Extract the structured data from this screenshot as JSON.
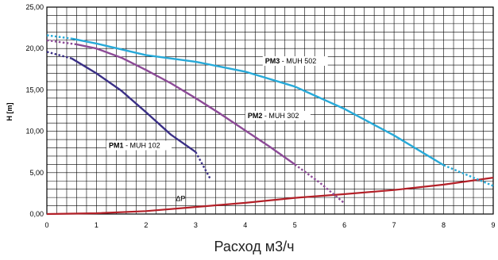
{
  "chart_data": {
    "type": "line",
    "title": "",
    "xlabel": "Расход м3/ч",
    "ylabel": "H [m]",
    "xlim": [
      0,
      9
    ],
    "ylim": [
      0,
      25
    ],
    "grid": true,
    "x_ticks": [
      "0",
      "1",
      "2",
      "3",
      "4",
      "5",
      "6",
      "7",
      "8",
      "9"
    ],
    "y_ticks": [
      "0,00",
      "5,00",
      "10,00",
      "15,00",
      "20,00",
      "25,00"
    ],
    "series": [
      {
        "label_bold": "PM1",
        "label_rest": " - MUH 102",
        "color": "#3a2f86",
        "solid": [
          [
            0.5,
            18.8
          ],
          [
            1.0,
            17.0
          ],
          [
            1.5,
            14.9
          ],
          [
            2.0,
            12.3
          ],
          [
            2.5,
            9.6
          ],
          [
            3.0,
            7.5
          ]
        ],
        "dotted": [
          [
            0.0,
            19.6
          ],
          [
            0.5,
            18.8
          ]
        ],
        "dotted_end": [
          [
            3.0,
            7.5
          ],
          [
            3.3,
            4.2
          ]
        ]
      },
      {
        "label_bold": "PM2",
        "label_rest": " - MUH 302",
        "color": "#8c4a97",
        "solid": [
          [
            0.6,
            20.5
          ],
          [
            1.0,
            20.0
          ],
          [
            1.5,
            18.9
          ],
          [
            2.0,
            17.4
          ],
          [
            2.5,
            15.8
          ],
          [
            3.0,
            14.0
          ],
          [
            3.5,
            12.1
          ],
          [
            4.0,
            10.1
          ],
          [
            4.5,
            8.1
          ],
          [
            5.0,
            6.0
          ]
        ],
        "dotted": [
          [
            0.0,
            21.0
          ],
          [
            0.6,
            20.5
          ]
        ],
        "dotted_end": [
          [
            5.0,
            6.0
          ],
          [
            5.5,
            3.8
          ],
          [
            6.0,
            1.3
          ]
        ]
      },
      {
        "label_bold": "PM3",
        "label_rest": " - MUH 502",
        "color": "#27a9d8",
        "solid": [
          [
            0.5,
            21.2
          ],
          [
            1.0,
            20.6
          ],
          [
            2.0,
            19.2
          ],
          [
            3.0,
            18.4
          ],
          [
            4.0,
            17.2
          ],
          [
            5.0,
            15.4
          ],
          [
            6.0,
            12.7
          ],
          [
            7.0,
            9.5
          ],
          [
            8.0,
            5.9
          ]
        ],
        "dotted": [
          [
            0.0,
            21.6
          ],
          [
            0.5,
            21.2
          ]
        ],
        "dotted_end": [
          [
            8.0,
            5.9
          ],
          [
            9.0,
            3.4
          ]
        ]
      }
    ],
    "resistance_curve": {
      "label": "ΔP",
      "color": "#b32028",
      "points": [
        [
          0,
          0.0
        ],
        [
          1,
          0.1
        ],
        [
          2,
          0.35
        ],
        [
          3,
          0.85
        ],
        [
          4,
          1.35
        ],
        [
          5,
          1.95
        ],
        [
          6,
          2.4
        ],
        [
          7,
          2.9
        ],
        [
          8,
          3.55
        ],
        [
          9,
          4.4
        ]
      ]
    }
  }
}
